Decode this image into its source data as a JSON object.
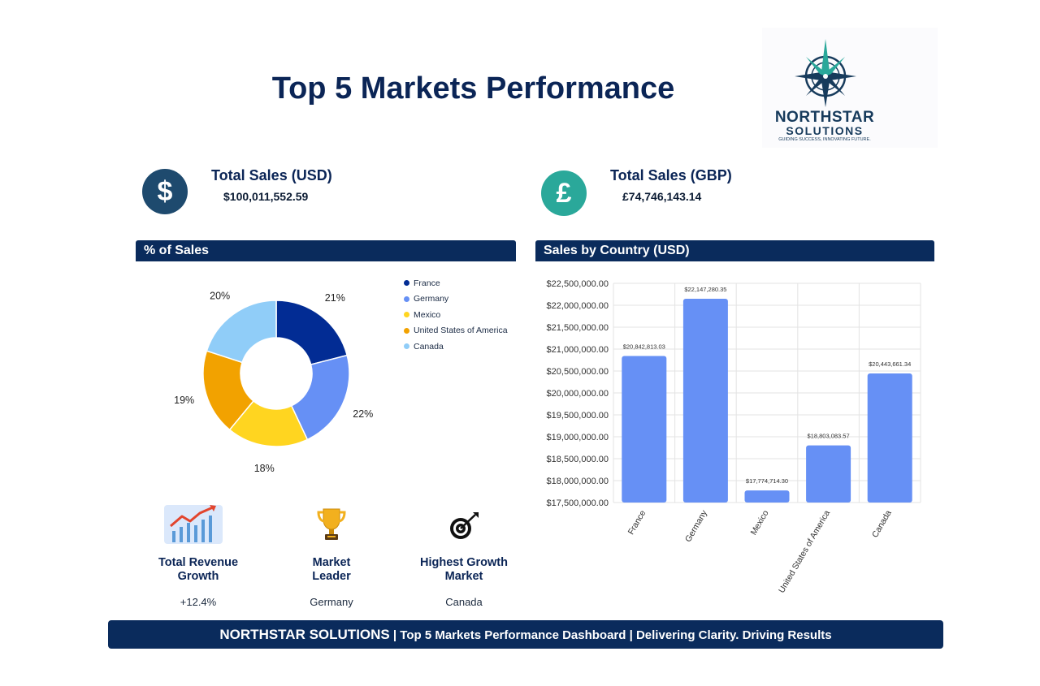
{
  "title": "Top 5 Markets Performance",
  "logo": {
    "name_line1": "NORTHSTAR",
    "name_line2": "SOLUTIONS",
    "tagline": "GUIDING SUCCESS, INNOVATING FUTURE.",
    "icon": "compass-star-icon"
  },
  "kpis": {
    "usd": {
      "label": "Total Sales (USD)",
      "value": "$100,011,552.59",
      "symbol": "$",
      "color": "#1e4a6e",
      "icon": "dollar-icon"
    },
    "gbp": {
      "label": "Total Sales (GBP)",
      "value": "£74,746,143.14",
      "symbol": "£",
      "color": "#2aa89a",
      "icon": "pound-icon"
    }
  },
  "pie_panel": {
    "title": "% of Sales"
  },
  "bar_panel": {
    "title": "Sales by Country (USD)"
  },
  "stats": [
    {
      "label_line1": "Total Revenue",
      "label_line2": "Growth",
      "value": "+12.4%",
      "icon": "growth-chart-icon"
    },
    {
      "label_line1": "Market",
      "label_line2": "Leader",
      "value": "Germany",
      "icon": "trophy-icon"
    },
    {
      "label_line1": "Highest Growth",
      "label_line2": "Market",
      "value": "Canada",
      "icon": "target-icon"
    }
  ],
  "footer": {
    "brand": "NORTHSTAR SOLUTIONS",
    "rest": " | Top 5 Markets Performance Dashboard | Delivering Clarity. Driving Results"
  },
  "chart_data": [
    {
      "type": "pie",
      "title": "% of Sales",
      "donut": true,
      "legend_position": "right",
      "categories": [
        "France",
        "Germany",
        "Mexico",
        "United States of America",
        "Canada"
      ],
      "values": [
        21,
        22,
        18,
        19,
        20
      ],
      "labels": [
        "21%",
        "22%",
        "18%",
        "19%",
        "20%"
      ],
      "colors": [
        "#022c94",
        "#6690f5",
        "#ffd520",
        "#f2a200",
        "#90cdf8"
      ]
    },
    {
      "type": "bar",
      "title": "Sales by Country (USD)",
      "categories": [
        "France",
        "Germany",
        "Mexico",
        "United States of America",
        "Canada"
      ],
      "values": [
        20842813.03,
        22147280.35,
        17774714.3,
        18803083.57,
        20443661.34
      ],
      "data_labels": [
        "$20,842,813.03",
        "$22,147,280.35",
        "$17,774,714.30",
        "$18,803,083.57",
        "$20,443,661.34"
      ],
      "ylim": [
        17500000,
        22500000
      ],
      "yticks": [
        17500000,
        18000000,
        18500000,
        19000000,
        19500000,
        20000000,
        20500000,
        21000000,
        21500000,
        22000000,
        22500000
      ],
      "ytick_labels": [
        "$17,500,000.00",
        "$18,000,000.00",
        "$18,500,000.00",
        "$19,000,000.00",
        "$19,500,000.00",
        "$20,000,000.00",
        "$20,500,000.00",
        "$21,000,000.00",
        "$21,500,000.00",
        "$22,000,000.00",
        "$22,500,000.00"
      ],
      "grid": true,
      "bar_color": "#6690f5"
    }
  ]
}
